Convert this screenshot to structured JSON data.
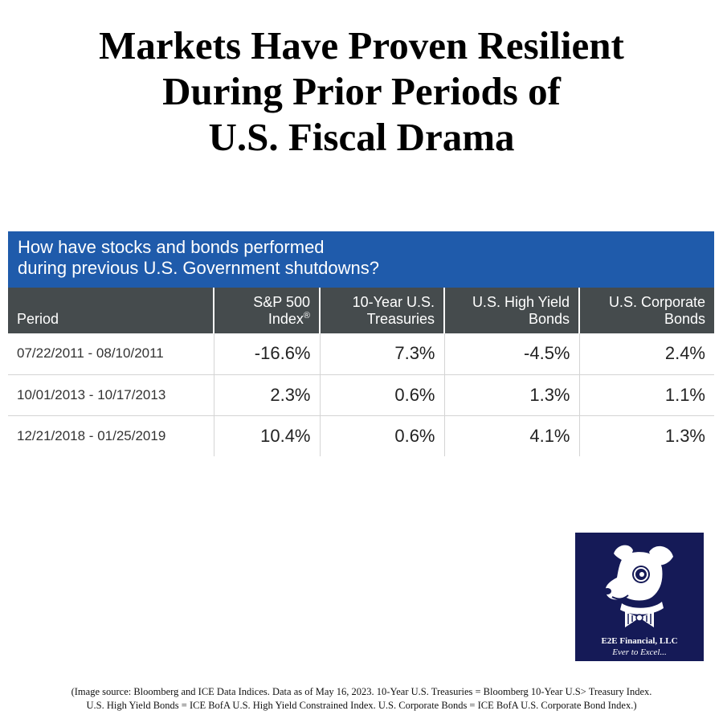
{
  "headline": {
    "lines": [
      "Markets Have Proven Resilient",
      "During Prior Periods of",
      "U.S. Fiscal Drama"
    ]
  },
  "chart_data": {
    "type": "table",
    "title_lines": [
      "How have stocks and bonds performed",
      "during previous U.S. Government shutdowns?"
    ],
    "columns": [
      {
        "lines": [
          "",
          "Period"
        ]
      },
      {
        "lines": [
          "S&P 500",
          "Index"
        ],
        "superscript": "®"
      },
      {
        "lines": [
          "10-Year U.S.",
          "Treasuries"
        ]
      },
      {
        "lines": [
          "U.S. High Yield",
          "Bonds"
        ]
      },
      {
        "lines": [
          "U.S. Corporate",
          "Bonds"
        ]
      }
    ],
    "rows": [
      {
        "period": "07/22/2011 - 08/10/2011",
        "values": [
          "-16.6%",
          "7.3%",
          "-4.5%",
          "2.4%"
        ]
      },
      {
        "period": "10/01/2013 - 10/17/2013",
        "values": [
          "2.3%",
          "0.6%",
          "1.3%",
          "1.1%"
        ]
      },
      {
        "period": "12/21/2018 - 01/25/2019",
        "values": [
          "10.4%",
          "0.6%",
          "4.1%",
          "1.3%"
        ]
      }
    ],
    "colors": {
      "caption_background": "#1f5bab",
      "header_background": "#454b4d"
    }
  },
  "logo": {
    "name": "E2E Financial, LLC",
    "tagline": "Ever to Excel...",
    "icon": "dog-with-bowtie-icon",
    "background": "#151a57"
  },
  "source_note": {
    "lines": [
      "(Image source: Bloomberg and ICE Data Indices. Data as of May 16, 2023. 10-Year U.S. Treasuries = Bloomberg 10-Year U.S> Treasury Index.",
      "U.S. High Yield Bonds = ICE BofA U.S. High Yield Constrained Index. U.S. Corporate Bonds = ICE BofA U.S. Corporate Bond Index.)"
    ]
  }
}
